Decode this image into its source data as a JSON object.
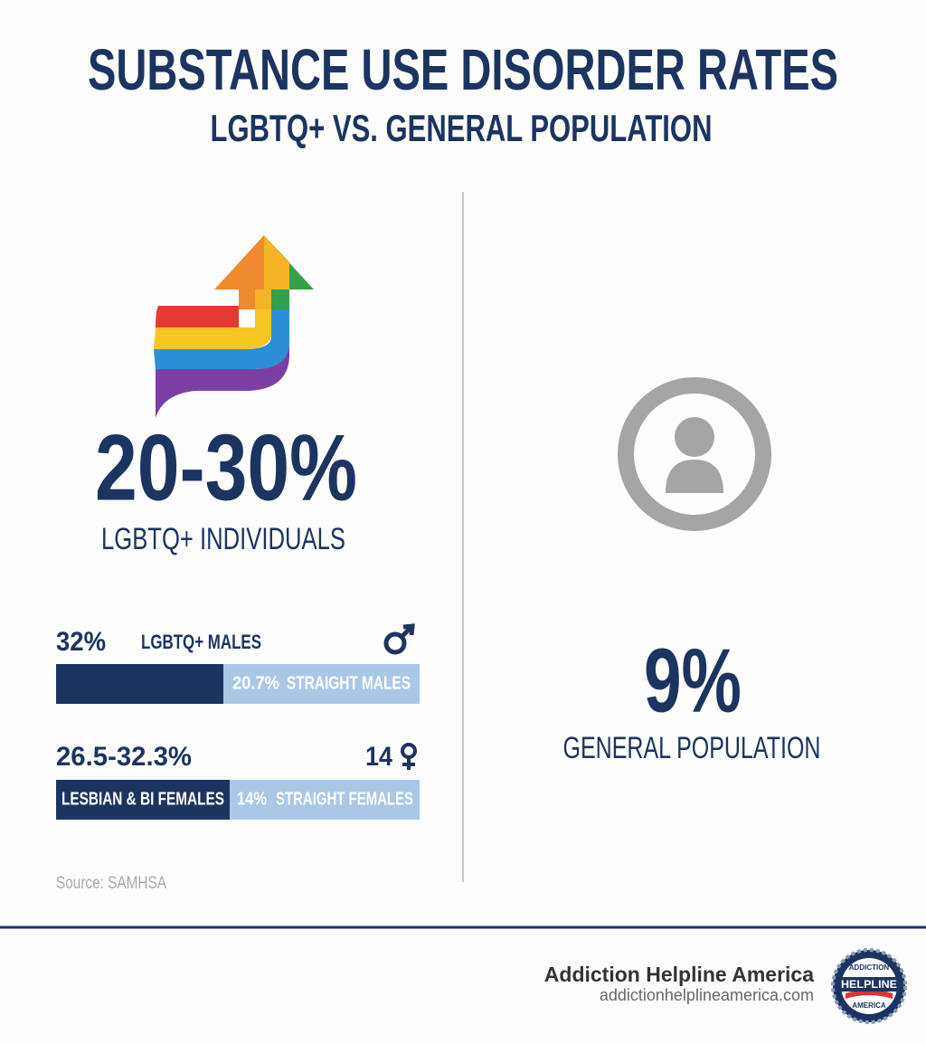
{
  "header": {
    "title": "SUBSTANCE USE DISORDER RATES",
    "subtitle": "LGBTQ+ VS. GENERAL POPULATION"
  },
  "lgbtq": {
    "headline": "20-30%",
    "label": "LGBTQ+ INDIVIDUALS",
    "males": {
      "value": "32%",
      "label": "LGBTQ+ MALES",
      "comparison_value": "20.7%",
      "comparison_label": "STRAIGHT MALES"
    },
    "females": {
      "value": "26.5-32.3%",
      "note": "14",
      "label": "LESBIAN & BI FEMALES",
      "comparison_value": "14%",
      "comparison_label": "STRAIGHT FEMALES"
    },
    "source": "Source: SAMHSA"
  },
  "general": {
    "headline": "9%",
    "label": "GENERAL POPULATION"
  },
  "footer": {
    "brand": "Addiction Helpline America",
    "url": "addictionhelplineamerica.com",
    "logo": {
      "top": "ADDICTION",
      "middle": "HELPLINE",
      "bottom": "AMERICA"
    }
  }
}
